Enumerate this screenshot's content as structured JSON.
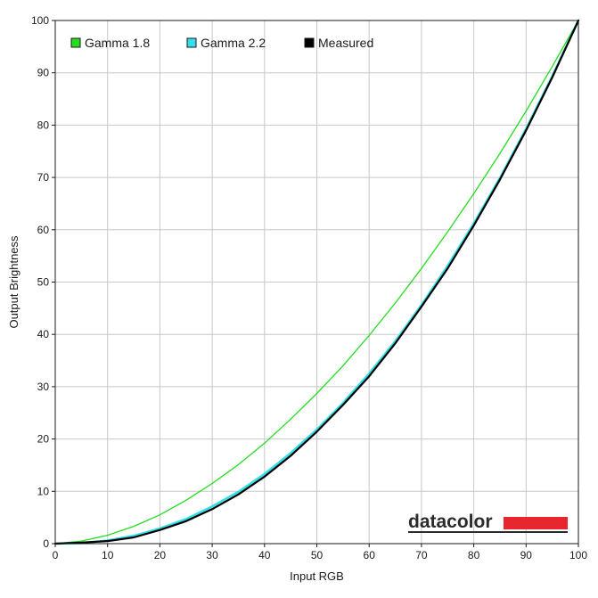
{
  "chart_data": {
    "type": "line",
    "xlabel": "Input RGB",
    "ylabel": "Output Brightness",
    "xlim": [
      0,
      100
    ],
    "ylim": [
      0,
      100
    ],
    "xticks": [
      0,
      10,
      20,
      30,
      40,
      50,
      60,
      70,
      80,
      90,
      100
    ],
    "yticks": [
      0,
      10,
      20,
      30,
      40,
      50,
      60,
      70,
      80,
      90,
      100
    ],
    "grid": true,
    "legend_position": "top-left",
    "x": [
      0,
      5,
      10,
      15,
      20,
      25,
      30,
      35,
      40,
      45,
      50,
      55,
      60,
      65,
      70,
      75,
      80,
      85,
      90,
      95,
      100
    ],
    "series": [
      {
        "name": "Gamma 1.8",
        "color": "#22dd22",
        "values": [
          0,
          0.5,
          1.6,
          3.3,
          5.5,
          8.3,
          11.5,
          15.1,
          19.2,
          23.8,
          28.7,
          34.0,
          39.8,
          46.0,
          52.6,
          59.6,
          66.9,
          74.6,
          82.7,
          91.2,
          100
        ]
      },
      {
        "name": "Gamma 2.2",
        "color": "#33e0e8",
        "values": [
          0,
          0.1,
          0.6,
          1.5,
          2.9,
          4.7,
          7.1,
          9.9,
          13.3,
          17.3,
          21.8,
          26.9,
          32.5,
          38.7,
          45.6,
          53.1,
          61.2,
          69.9,
          79.3,
          89.3,
          100
        ]
      },
      {
        "name": "Measured",
        "color": "#000000",
        "values": [
          0,
          0.2,
          0.5,
          1.2,
          2.6,
          4.3,
          6.6,
          9.4,
          12.8,
          16.8,
          21.4,
          26.5,
          32.0,
          38.3,
          45.3,
          52.6,
          60.8,
          69.6,
          79.0,
          89.1,
          100
        ]
      }
    ]
  },
  "logo": {
    "text": "datacolor",
    "bar_color": "#e8262d"
  }
}
